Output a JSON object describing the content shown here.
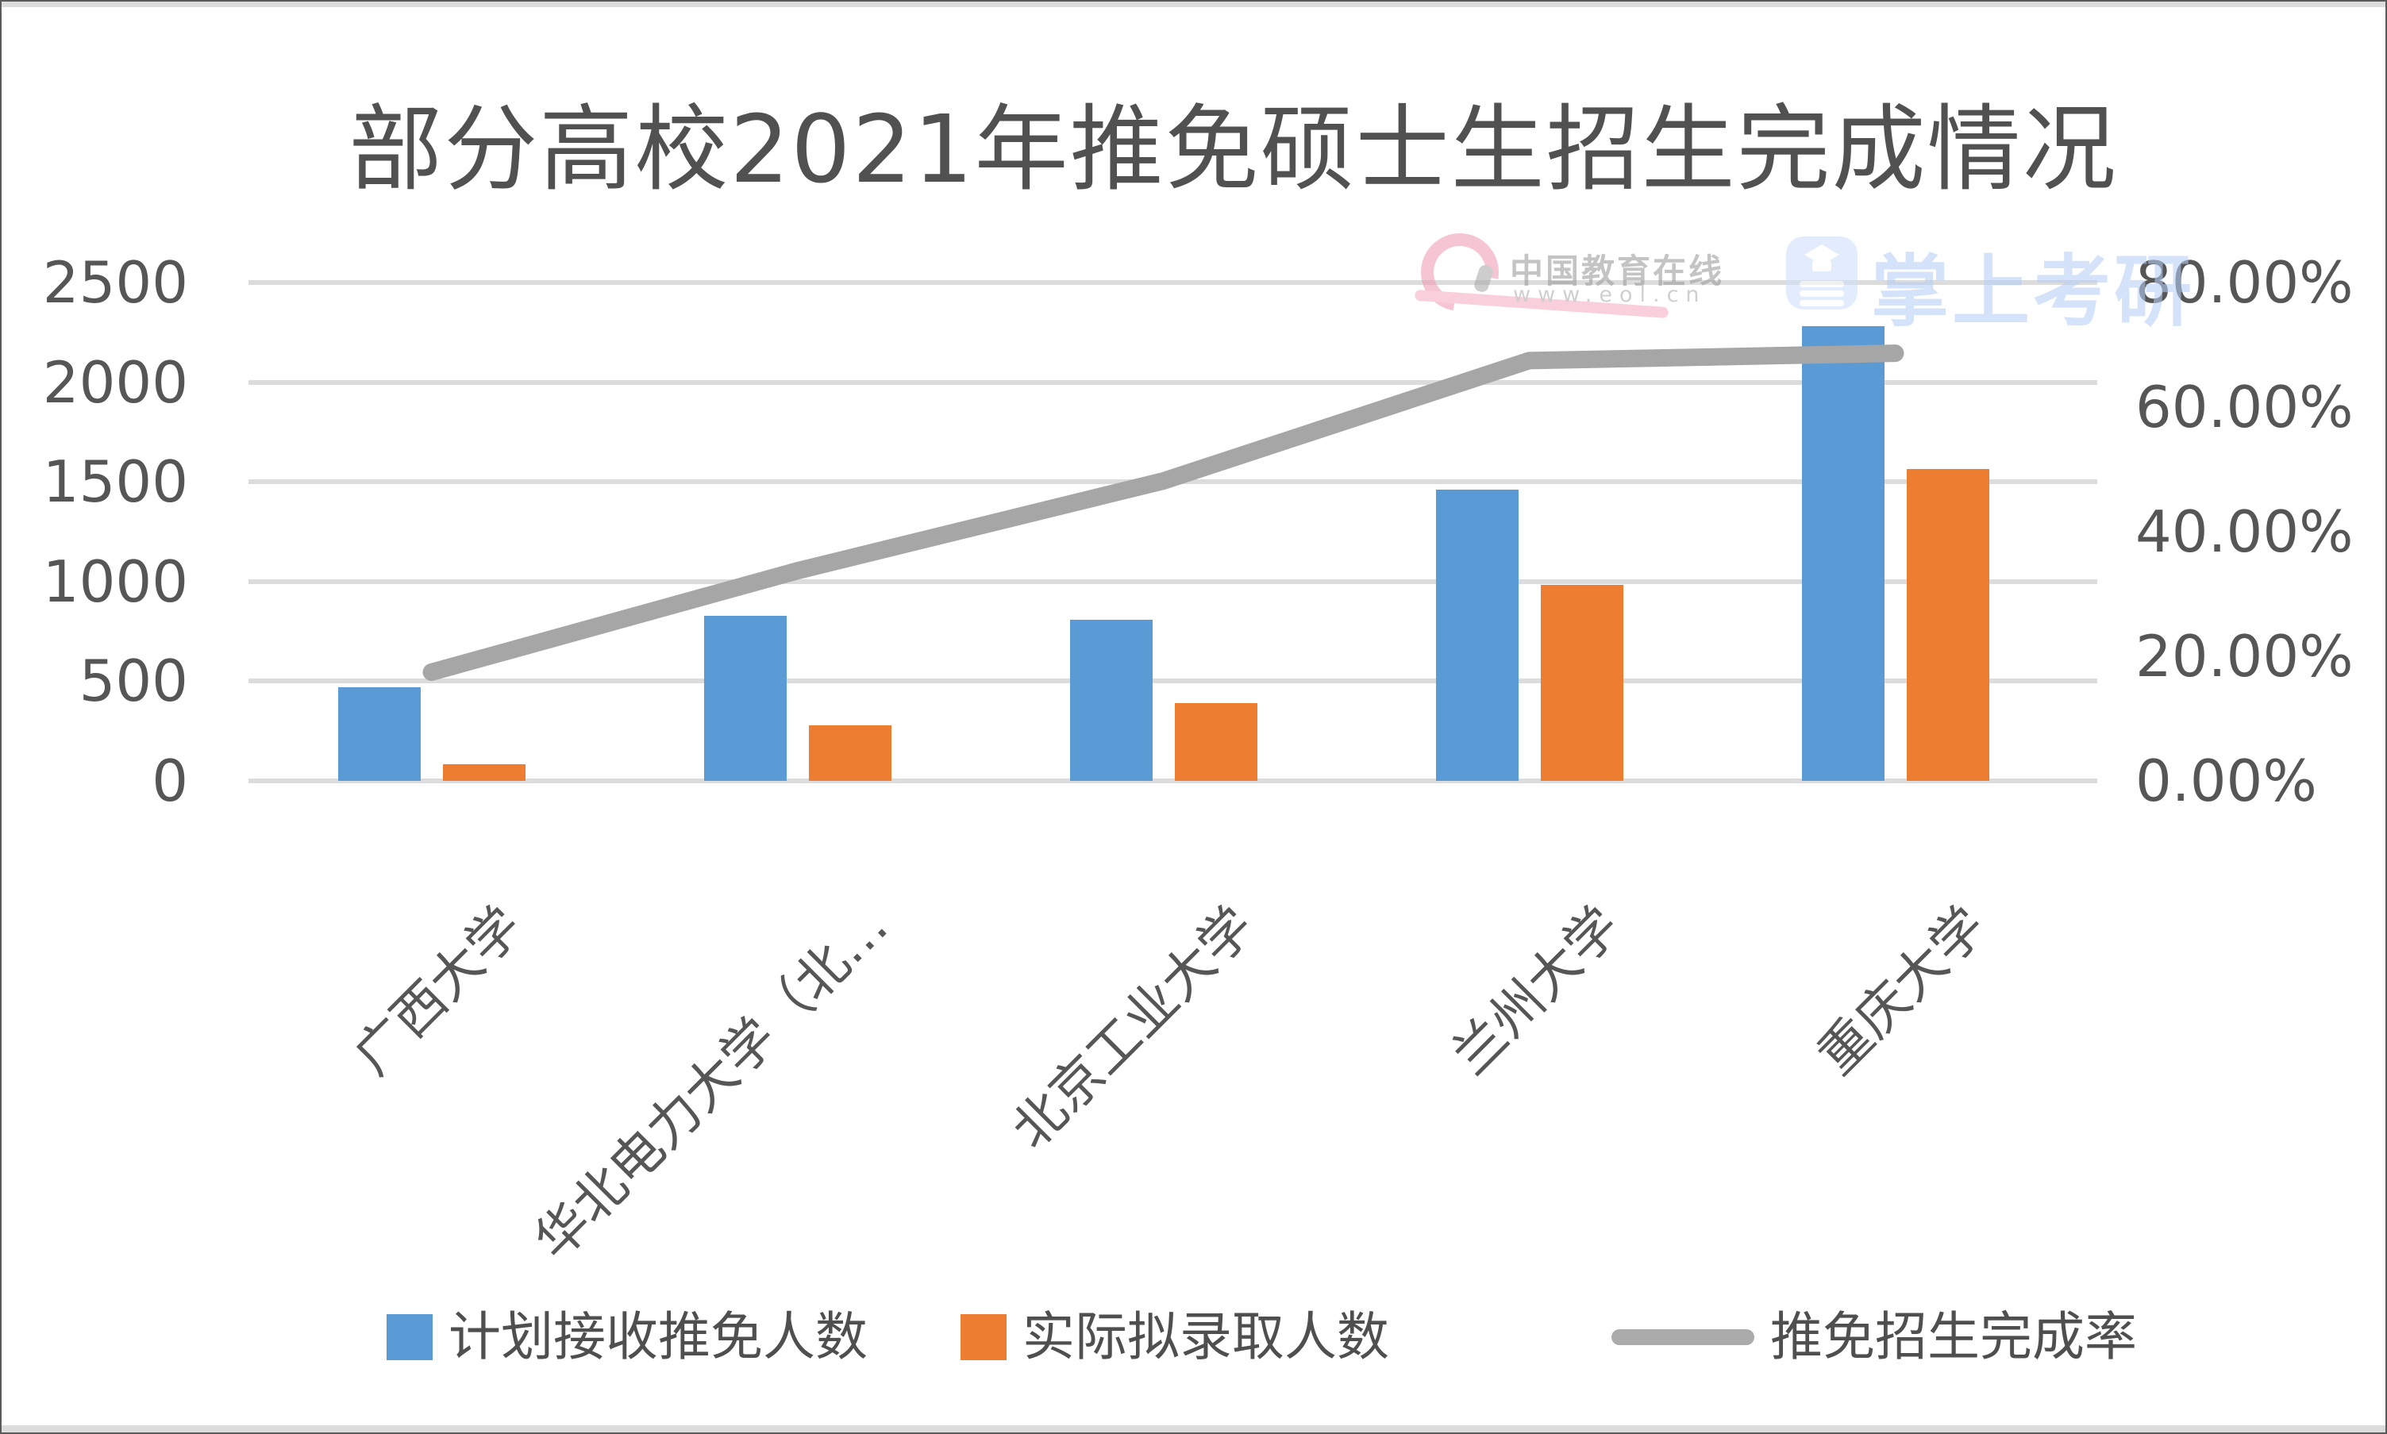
{
  "title": "部分高校2021年推免硕士生招生完成情况",
  "watermark": {
    "brand": "中国教育在线",
    "url": "www.eol.cn",
    "app": "掌上考研",
    "eol_pink": "#EE9CB5",
    "app_blue": "#B6CFF5"
  },
  "legend": {
    "items": [
      {
        "label": "计划接收推免人数",
        "color": "#5B9BD5",
        "marker": "square"
      },
      {
        "label": "实际拟录取人数",
        "color": "#ED7D31",
        "marker": "square"
      },
      {
        "label": "推免招生完成率",
        "color": "#ABABAB",
        "marker": "line"
      }
    ]
  },
  "chart_data": {
    "type": "combo-bar-line",
    "title": "部分高校2021年推免硕士生招生完成情况",
    "categories": [
      "广西大学",
      "华北电力大学（北…",
      "北京工业大学",
      "兰州大学",
      "重庆大学"
    ],
    "series": [
      {
        "name": "计划接收推免人数",
        "kind": "bar",
        "axis": "left",
        "color": "#5B9BD5",
        "values": [
          470,
          830,
          810,
          1460,
          2280
        ]
      },
      {
        "name": "实际拟录取人数",
        "kind": "bar",
        "axis": "left",
        "color": "#ED7D31",
        "values": [
          82,
          280,
          390,
          985,
          1565
        ]
      },
      {
        "name": "推免招生完成率",
        "kind": "line",
        "axis": "right",
        "color": "#A6A6A6",
        "values_percent": [
          17.45,
          33.73,
          48.15,
          67.47,
          68.64
        ]
      }
    ],
    "left_axis": {
      "min": 0,
      "max": 2500,
      "step": 500,
      "tick_labels": [
        "2500",
        "2000",
        "1500",
        "1000",
        "500",
        "0"
      ]
    },
    "right_axis": {
      "min": 0,
      "max": 80,
      "step": 20,
      "tick_labels": [
        "80.00%",
        "60.00%",
        "40.00%",
        "20.00%",
        "0.00%"
      ]
    },
    "grid": true,
    "legend_position": "bottom",
    "gridline_color": "#DCDCDC"
  }
}
